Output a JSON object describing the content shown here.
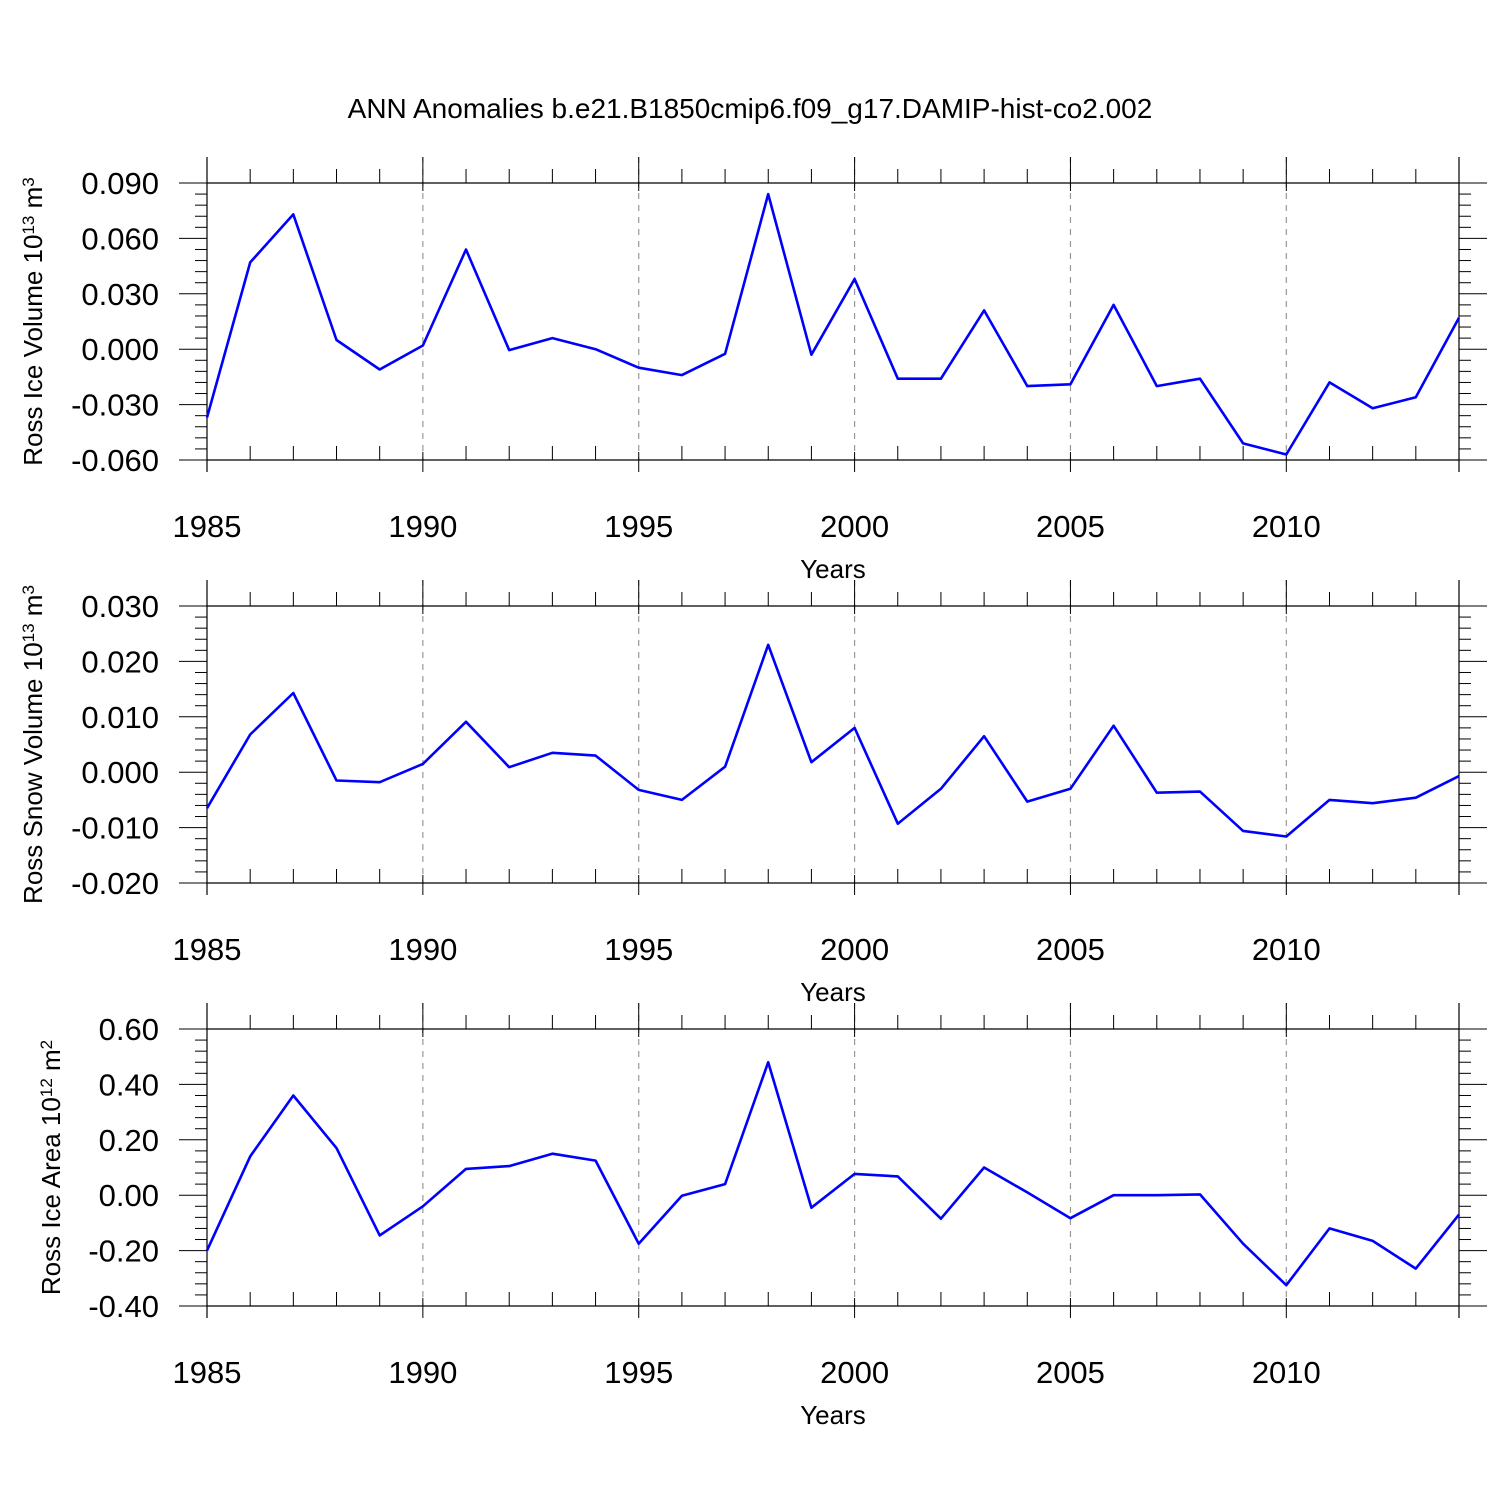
{
  "figure": {
    "title": "ANN Anomalies b.e21.B1850cmip6.f09_g17.DAMIP-hist-co2.002"
  },
  "colors": {
    "line": "#0000ff",
    "grid": "#999999",
    "axis": "#000000"
  },
  "chart_data": [
    {
      "type": "line",
      "xlabel": "Years",
      "ylabel": {
        "base": "Ross Ice Volume 10",
        "exp": "13",
        "unit": " m",
        "unit_exp": "3"
      },
      "xlim": [
        1985,
        2014
      ],
      "ylim": [
        -0.06,
        0.09
      ],
      "xticks": [
        1985,
        1990,
        1995,
        2000,
        2005,
        2010
      ],
      "xtick_labels": [
        "1985",
        "1990",
        "1995",
        "2000",
        "2005",
        "2010"
      ],
      "yticks": [
        -0.06,
        -0.03,
        0.0,
        0.03,
        0.06,
        0.09
      ],
      "ytick_labels": [
        "-0.060",
        "-0.030",
        "0.000",
        "0.030",
        "0.060",
        "0.090"
      ],
      "grid": "x dashed at major ticks",
      "x": [
        1985,
        1986,
        1987,
        1988,
        1989,
        1990,
        1991,
        1992,
        1993,
        1994,
        1995,
        1996,
        1997,
        1998,
        1999,
        2000,
        2001,
        2002,
        2003,
        2004,
        2005,
        2006,
        2007,
        2008,
        2009,
        2010,
        2011,
        2012,
        2013,
        2014
      ],
      "values": [
        -0.037,
        0.047,
        0.073,
        0.005,
        -0.011,
        0.002,
        0.054,
        -0.0005,
        0.006,
        0.0,
        -0.01,
        -0.014,
        -0.0025,
        0.084,
        -0.003,
        0.038,
        -0.016,
        -0.016,
        0.021,
        -0.02,
        -0.019,
        0.024,
        -0.02,
        -0.016,
        -0.051,
        -0.057,
        -0.018,
        -0.032,
        -0.026,
        0.017
      ]
    },
    {
      "type": "line",
      "xlabel": "Years",
      "ylabel": {
        "base": "Ross Snow Volume 10",
        "exp": "13",
        "unit": " m",
        "unit_exp": "3"
      },
      "xlim": [
        1985,
        2014
      ],
      "ylim": [
        -0.02,
        0.03
      ],
      "xticks": [
        1985,
        1990,
        1995,
        2000,
        2005,
        2010
      ],
      "xtick_labels": [
        "1985",
        "1990",
        "1995",
        "2000",
        "2005",
        "2010"
      ],
      "yticks": [
        -0.02,
        -0.01,
        0.0,
        0.01,
        0.02,
        0.03
      ],
      "ytick_labels": [
        "-0.020",
        "-0.010",
        "0.000",
        "0.010",
        "0.020",
        "0.030"
      ],
      "grid": "x dashed at major ticks",
      "x": [
        1985,
        1986,
        1987,
        1988,
        1989,
        1990,
        1991,
        1992,
        1993,
        1994,
        1995,
        1996,
        1997,
        1998,
        1999,
        2000,
        2001,
        2002,
        2003,
        2004,
        2005,
        2006,
        2007,
        2008,
        2009,
        2010,
        2011,
        2012,
        2013,
        2014
      ],
      "values": [
        -0.0065,
        0.0068,
        0.0143,
        -0.0015,
        -0.0018,
        0.0015,
        0.0091,
        0.0009,
        0.0035,
        0.003,
        -0.0032,
        -0.005,
        0.001,
        0.023,
        0.0018,
        0.008,
        -0.0093,
        -0.003,
        0.0065,
        -0.0053,
        -0.003,
        0.0084,
        -0.0037,
        -0.0035,
        -0.0106,
        -0.0116,
        -0.005,
        -0.0056,
        -0.0046,
        -0.0007
      ]
    },
    {
      "type": "line",
      "xlabel": "Years",
      "ylabel": {
        "base": "Ross Ice Area 10",
        "exp": "12",
        "unit": " m",
        "unit_exp": "2"
      },
      "xlim": [
        1985,
        2014
      ],
      "ylim": [
        -0.4,
        0.6
      ],
      "xticks": [
        1985,
        1990,
        1995,
        2000,
        2005,
        2010
      ],
      "xtick_labels": [
        "1985",
        "1990",
        "1995",
        "2000",
        "2005",
        "2010"
      ],
      "yticks": [
        -0.4,
        -0.2,
        0.0,
        0.2,
        0.4,
        0.6
      ],
      "ytick_labels": [
        "-0.40",
        "-0.20",
        "0.00",
        "0.20",
        "0.40",
        "0.60"
      ],
      "grid": "x dashed at major ticks",
      "x": [
        1985,
        1986,
        1987,
        1988,
        1989,
        1990,
        1991,
        1992,
        1993,
        1994,
        1995,
        1996,
        1997,
        1998,
        1999,
        2000,
        2001,
        2002,
        2003,
        2004,
        2005,
        2006,
        2007,
        2008,
        2009,
        2010,
        2011,
        2012,
        2013,
        2014
      ],
      "values": [
        -0.2,
        0.14,
        0.36,
        0.17,
        -0.145,
        -0.04,
        0.095,
        0.105,
        0.15,
        0.125,
        -0.175,
        -0.002,
        0.04,
        0.48,
        -0.045,
        0.077,
        0.068,
        -0.085,
        0.1,
        0.01,
        -0.083,
        0.0,
        0.0,
        0.003,
        -0.175,
        -0.325,
        -0.12,
        -0.165,
        -0.265,
        -0.07
      ]
    }
  ]
}
